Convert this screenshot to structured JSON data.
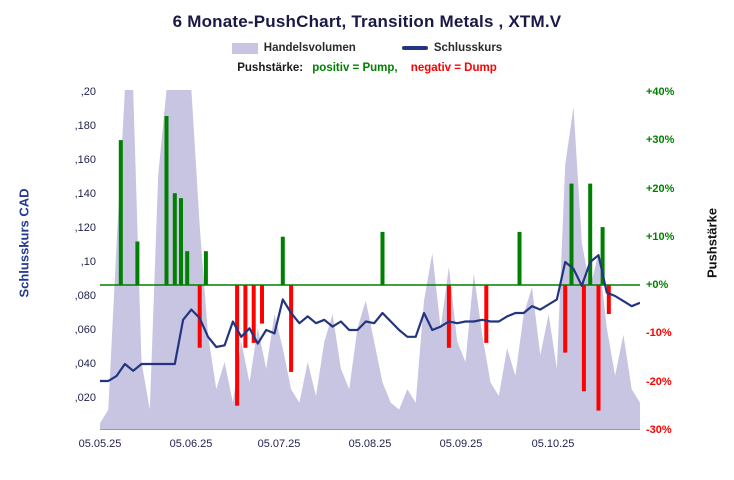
{
  "chart_data": {
    "type": "combo",
    "title": "6 Monate-PushChart, Transition Metals , XTM.V",
    "legend": {
      "volume": "Handelsvolumen",
      "close": "Schlusskurs"
    },
    "subtitle": {
      "label": "Pushstärke:",
      "positive": "positiv = Pump,",
      "negative": "negativ = Dump"
    },
    "x_axis": {
      "tick_labels": [
        "05.05.25",
        "05.06.25",
        "05.07.25",
        "05.08.25",
        "05.09.25",
        "05.10.25"
      ],
      "tick_days": [
        0,
        22,
        43,
        65,
        87,
        109
      ],
      "total_days": 130
    },
    "left_axis": {
      "title": "Schlusskurs CAD",
      "tick_labels": [
        ",20",
        ",180",
        ",160",
        ",140",
        ",120",
        ",10",
        ",080",
        ",060",
        ",040",
        ",020"
      ],
      "tick_values": [
        0.2,
        0.18,
        0.16,
        0.14,
        0.12,
        0.1,
        0.08,
        0.06,
        0.04,
        0.02
      ],
      "unit": "CAD"
    },
    "right_axis": {
      "title": "Pushstärke",
      "tick_labels": [
        "+40%",
        "+30%",
        "+20%",
        "+10%",
        "+0%",
        "-10%",
        "-20%",
        "-30%"
      ],
      "tick_values": [
        40,
        30,
        20,
        10,
        0,
        -10,
        -20,
        -30
      ],
      "unit": "%"
    },
    "zero_line": {
      "value_pct": 0,
      "color": "#008000"
    },
    "series": {
      "volume": {
        "name": "Handelsvolumen",
        "type": "area",
        "color": "#c7c5e2",
        "days_step": 2,
        "values": [
          2,
          6,
          55,
          100,
          100,
          20,
          6,
          75,
          100,
          100,
          100,
          100,
          60,
          28,
          12,
          20,
          8,
          26,
          14,
          30,
          18,
          34,
          24,
          12,
          8,
          20,
          10,
          26,
          34,
          18,
          12,
          30,
          38,
          26,
          14,
          8,
          6,
          12,
          8,
          38,
          52,
          30,
          48,
          26,
          20,
          46,
          28,
          14,
          10,
          24,
          16,
          34,
          42,
          22,
          34,
          18,
          78,
          95,
          55,
          42,
          52,
          30,
          16,
          28,
          12,
          8
        ]
      },
      "close": {
        "name": "Schlusskurs",
        "type": "line",
        "color": "#24357f",
        "days_step": 2,
        "values": [
          0.03,
          0.03,
          0.033,
          0.04,
          0.036,
          0.04,
          0.04,
          0.04,
          0.04,
          0.04,
          0.066,
          0.072,
          0.067,
          0.056,
          0.05,
          0.051,
          0.065,
          0.056,
          0.061,
          0.052,
          0.06,
          0.058,
          0.078,
          0.07,
          0.064,
          0.068,
          0.064,
          0.066,
          0.062,
          0.065,
          0.06,
          0.06,
          0.065,
          0.064,
          0.07,
          0.065,
          0.06,
          0.056,
          0.056,
          0.07,
          0.06,
          0.062,
          0.065,
          0.064,
          0.065,
          0.065,
          0.066,
          0.065,
          0.065,
          0.068,
          0.07,
          0.07,
          0.074,
          0.072,
          0.075,
          0.078,
          0.1,
          0.096,
          0.086,
          0.1,
          0.104,
          0.082,
          0.08,
          0.077,
          0.074,
          0.076
        ]
      },
      "push": {
        "name": "Pushstärke",
        "type": "bar",
        "positive_color": "#008000",
        "negative_color": "#ff0000",
        "points": [
          {
            "day": 5,
            "pct": 30
          },
          {
            "day": 9,
            "pct": 9
          },
          {
            "day": 16,
            "pct": 35
          },
          {
            "day": 18,
            "pct": 19
          },
          {
            "day": 19.5,
            "pct": 18
          },
          {
            "day": 21,
            "pct": 7
          },
          {
            "day": 24,
            "pct": -13
          },
          {
            "day": 25.5,
            "pct": 7
          },
          {
            "day": 33,
            "pct": -25
          },
          {
            "day": 35,
            "pct": -13
          },
          {
            "day": 37,
            "pct": -12
          },
          {
            "day": 39,
            "pct": -8
          },
          {
            "day": 44,
            "pct": 10
          },
          {
            "day": 46,
            "pct": -18
          },
          {
            "day": 68,
            "pct": 11
          },
          {
            "day": 84,
            "pct": -13
          },
          {
            "day": 93,
            "pct": -12
          },
          {
            "day": 101,
            "pct": 11
          },
          {
            "day": 112,
            "pct": -14
          },
          {
            "day": 113.5,
            "pct": 21
          },
          {
            "day": 116.5,
            "pct": -22
          },
          {
            "day": 118,
            "pct": 21
          },
          {
            "day": 120,
            "pct": -26
          },
          {
            "day": 121,
            "pct": 12
          },
          {
            "day": 122.5,
            "pct": -6
          }
        ]
      }
    }
  }
}
